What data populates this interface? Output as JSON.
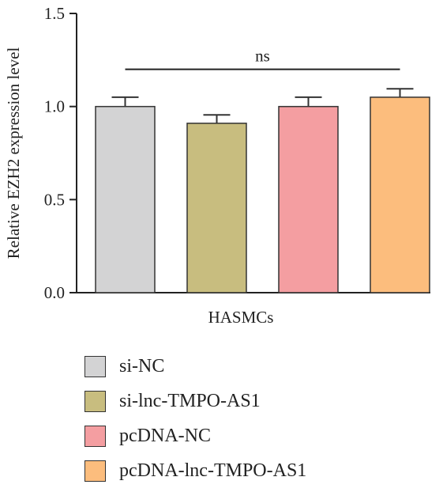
{
  "chart_data": {
    "type": "bar",
    "ylabel": "Relative EZH2 expression level",
    "xlabel": "HASMCs",
    "ylim": [
      0,
      1.5
    ],
    "yticks": [
      0.0,
      0.5,
      1.0,
      1.5
    ],
    "ytick_labels": [
      "0.0",
      "0.5",
      "1.0",
      "1.5"
    ],
    "grid": false,
    "legend_position": "bottom",
    "series": [
      {
        "name": "si-NC",
        "value": 1.0,
        "error": 0.05,
        "color": "#d3d3d4"
      },
      {
        "name": "si-lnc-TMPO-AS1",
        "value": 0.91,
        "error": 0.045,
        "color": "#c8bd7f"
      },
      {
        "name": "pcDNA-NC",
        "value": 1.0,
        "error": 0.05,
        "color": "#f49ea1"
      },
      {
        "name": "pcDNA-lnc-TMPO-AS1",
        "value": 1.05,
        "error": 0.045,
        "color": "#fcbd7d"
      }
    ],
    "annotation": {
      "text": "ns",
      "y": 1.2
    }
  }
}
